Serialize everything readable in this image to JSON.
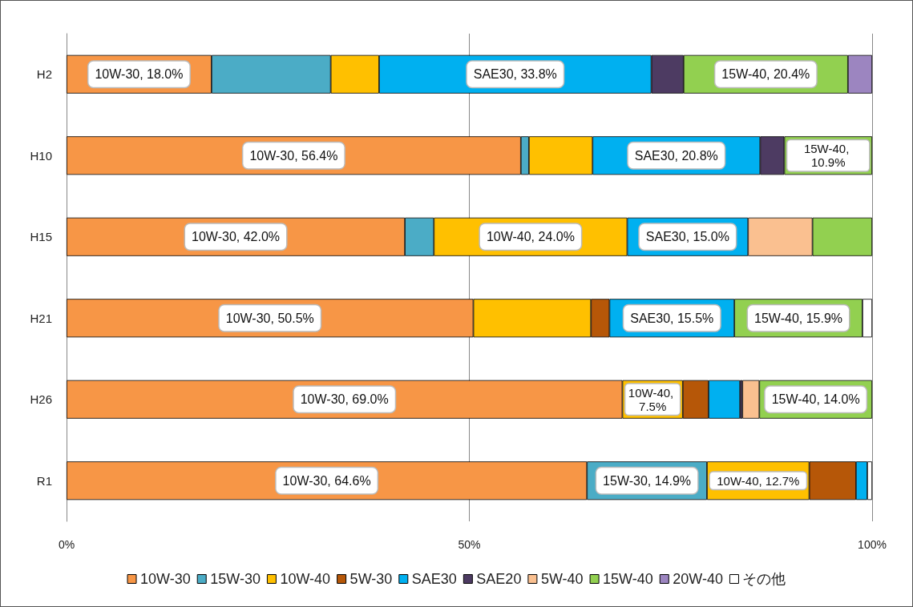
{
  "chart_data": {
    "type": "bar",
    "orientation": "horizontal",
    "stacked": true,
    "categories": [
      "H2",
      "H10",
      "H15",
      "H21",
      "H26",
      "R1"
    ],
    "series": [
      {
        "name": "10W-30",
        "color": "#f79646",
        "values": [
          18.0,
          56.4,
          42.0,
          50.5,
          69.0,
          64.6
        ],
        "value_labels": [
          "10W-30, 18.0%",
          "10W-30, 56.4%",
          "10W-30, 42.0%",
          "10W-30, 50.5%",
          "10W-30, 69.0%",
          "10W-30, 64.6%"
        ]
      },
      {
        "name": "15W-30",
        "color": "#4bacc6",
        "values": [
          14.8,
          1.0,
          3.6,
          null,
          null,
          14.9
        ],
        "value_labels": [
          null,
          null,
          null,
          null,
          null,
          "15W-30, 14.9%"
        ]
      },
      {
        "name": "10W-40",
        "color": "#ffc000",
        "values": [
          6.0,
          7.9,
          24.0,
          14.6,
          7.5,
          12.7
        ],
        "value_labels": [
          null,
          null,
          "10W-40, 24.0%",
          null,
          "10W-40, 7.5%",
          "10W-40, 12.7%"
        ]
      },
      {
        "name": "5W-30",
        "color": "#b65708",
        "values": [
          null,
          null,
          null,
          2.3,
          3.2,
          5.8
        ]
      },
      {
        "name": "SAE30",
        "color": "#00b0f0",
        "values": [
          33.8,
          20.8,
          15.0,
          15.5,
          3.9,
          1.4
        ],
        "value_labels": [
          "SAE30, 33.8%",
          "SAE30, 20.8%",
          "SAE30, 15.0%",
          "SAE30, 15.5%",
          null,
          null
        ]
      },
      {
        "name": "SAE20",
        "color": "#4d3b62",
        "values": [
          4.0,
          3.0,
          null,
          null,
          0.3,
          null
        ]
      },
      {
        "name": "5W-40",
        "color": "#fac090",
        "values": [
          null,
          null,
          8.0,
          null,
          2.1,
          null
        ]
      },
      {
        "name": "15W-40",
        "color": "#92d050",
        "values": [
          20.4,
          10.9,
          7.4,
          15.9,
          14.0,
          null
        ],
        "value_labels": [
          "15W-40, 20.4%",
          "15W-40, 10.9%",
          null,
          "15W-40, 15.9%",
          "15W-40, 14.0%",
          null
        ]
      },
      {
        "name": "20W-40",
        "color": "#9c85c0",
        "values": [
          3.0,
          null,
          null,
          null,
          null,
          null
        ]
      },
      {
        "name": "その他",
        "color": "#ffffff",
        "values": [
          null,
          null,
          null,
          1.2,
          null,
          0.6
        ]
      }
    ],
    "xlim": [
      0,
      100
    ],
    "xticks": [
      {
        "value": 0,
        "label": "0%"
      },
      {
        "value": 50,
        "label": "50%"
      },
      {
        "value": 100,
        "label": "100%"
      }
    ],
    "grid": "x",
    "legend": "bottom"
  }
}
